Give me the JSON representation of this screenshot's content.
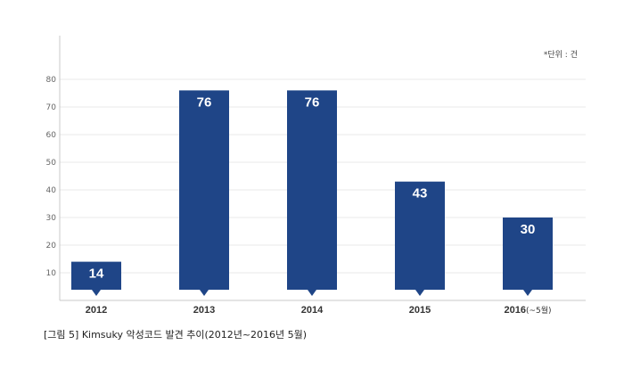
{
  "unit_note": "*단위 : 건",
  "caption": "[그림 5] Kimsuky 악성코드 발견 추이(2012년~2016년 5월)",
  "colors": {
    "bar": "#1f4587",
    "grid": "#e8e8e8",
    "axis": "#c8c8c8",
    "label": "#ffffff"
  },
  "chart_data": {
    "type": "bar",
    "categories": [
      {
        "main": "2012",
        "suffix": ""
      },
      {
        "main": "2013",
        "suffix": ""
      },
      {
        "main": "2014",
        "suffix": ""
      },
      {
        "main": "2015",
        "suffix": ""
      },
      {
        "main": "2016",
        "suffix": "(~5월)"
      }
    ],
    "values": [
      14,
      76,
      76,
      43,
      30
    ],
    "data_labels": [
      "14",
      "76",
      "76",
      "43",
      "30"
    ],
    "yticks": [
      10,
      20,
      30,
      40,
      50,
      60,
      70,
      80
    ],
    "ylim": [
      0,
      80
    ],
    "grid": true,
    "legend": "none"
  }
}
